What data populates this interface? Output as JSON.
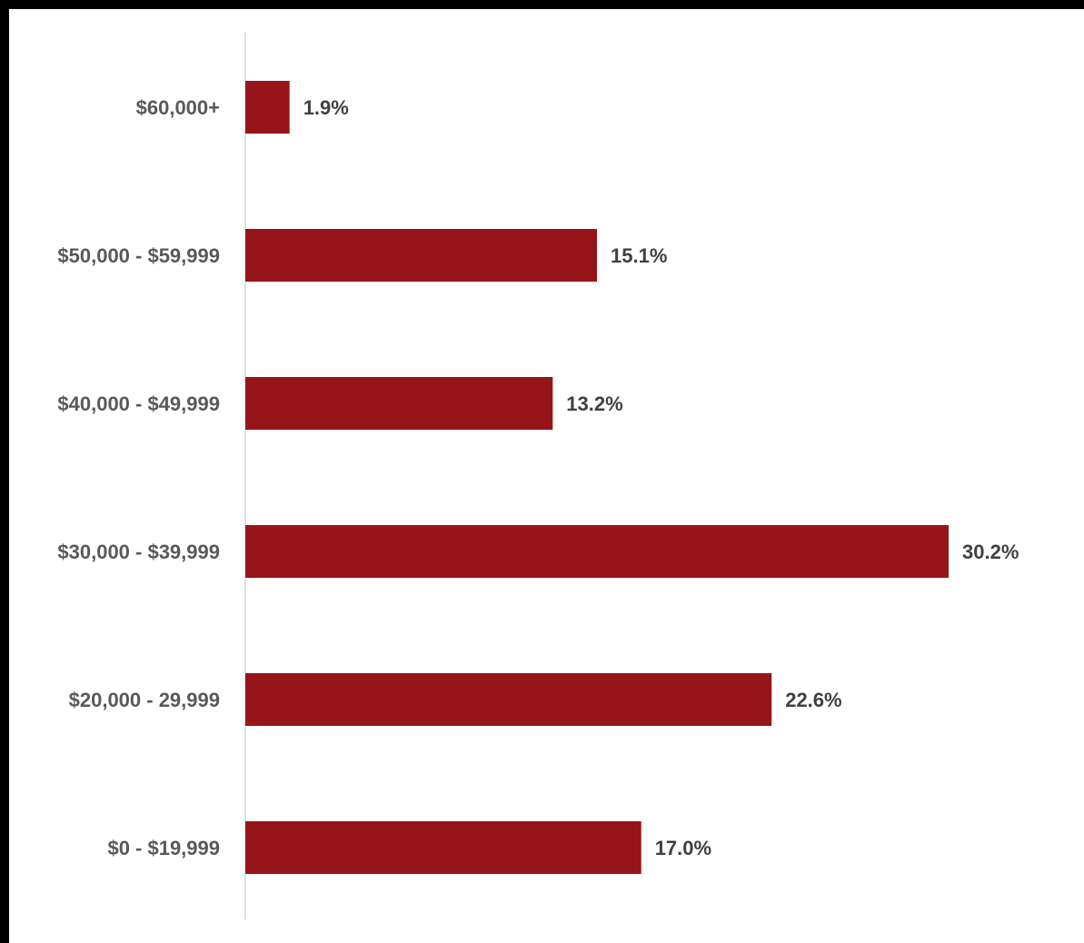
{
  "chart_data": {
    "type": "bar",
    "orientation": "horizontal",
    "categories": [
      "$60,000+",
      "$50,000 - $59,999",
      "$40,000 - $49,999",
      "$30,000 - $39,999",
      "$20,000 - 29,999",
      "$0 - $19,999"
    ],
    "values": [
      1.9,
      15.1,
      13.2,
      30.2,
      22.6,
      17.0
    ],
    "value_labels": [
      "1.9%",
      "15.1%",
      "13.2%",
      "30.2%",
      "22.6%",
      "17.0%"
    ],
    "title": "",
    "xlabel": "",
    "ylabel": "",
    "xlim": [
      0,
      35
    ],
    "grid": false,
    "legend": "none",
    "colors": {
      "bar": "#961518",
      "category_text": "#595959",
      "value_text": "#404040",
      "axis_line": "#d9d9d9"
    }
  }
}
